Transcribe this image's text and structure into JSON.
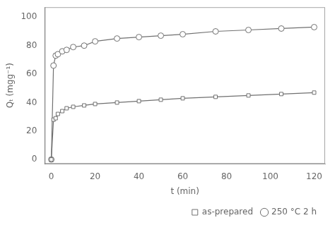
{
  "chart_data": {
    "type": "line",
    "x": [
      0,
      1,
      2,
      3,
      5,
      7,
      10,
      15,
      20,
      30,
      40,
      50,
      60,
      75,
      90,
      105,
      120
    ],
    "series": [
      {
        "name": "as-prepared",
        "color": "#707070",
        "marker": "square",
        "values": [
          0,
          28,
          29,
          32,
          34,
          36,
          37,
          38,
          39,
          40,
          41,
          42,
          43,
          44,
          45,
          46,
          47
        ]
      },
      {
        "name": "250 °C 2 h",
        "color": "#707070",
        "marker": "circle",
        "values": [
          0,
          66,
          73,
          74,
          76,
          77,
          79,
          80,
          83,
          85,
          86,
          87,
          88,
          90,
          91,
          92,
          93
        ]
      }
    ],
    "x_label": "t (min)",
    "y_label": "Qₜ (mgg⁻¹)",
    "xlim": [
      -3,
      125
    ],
    "ylim": [
      -3,
      107
    ],
    "xticks": [
      0,
      20,
      40,
      60,
      80,
      100,
      120
    ],
    "yticks": [
      0,
      20,
      40,
      60,
      80,
      100
    ],
    "grid": false,
    "legend": "lower right"
  }
}
